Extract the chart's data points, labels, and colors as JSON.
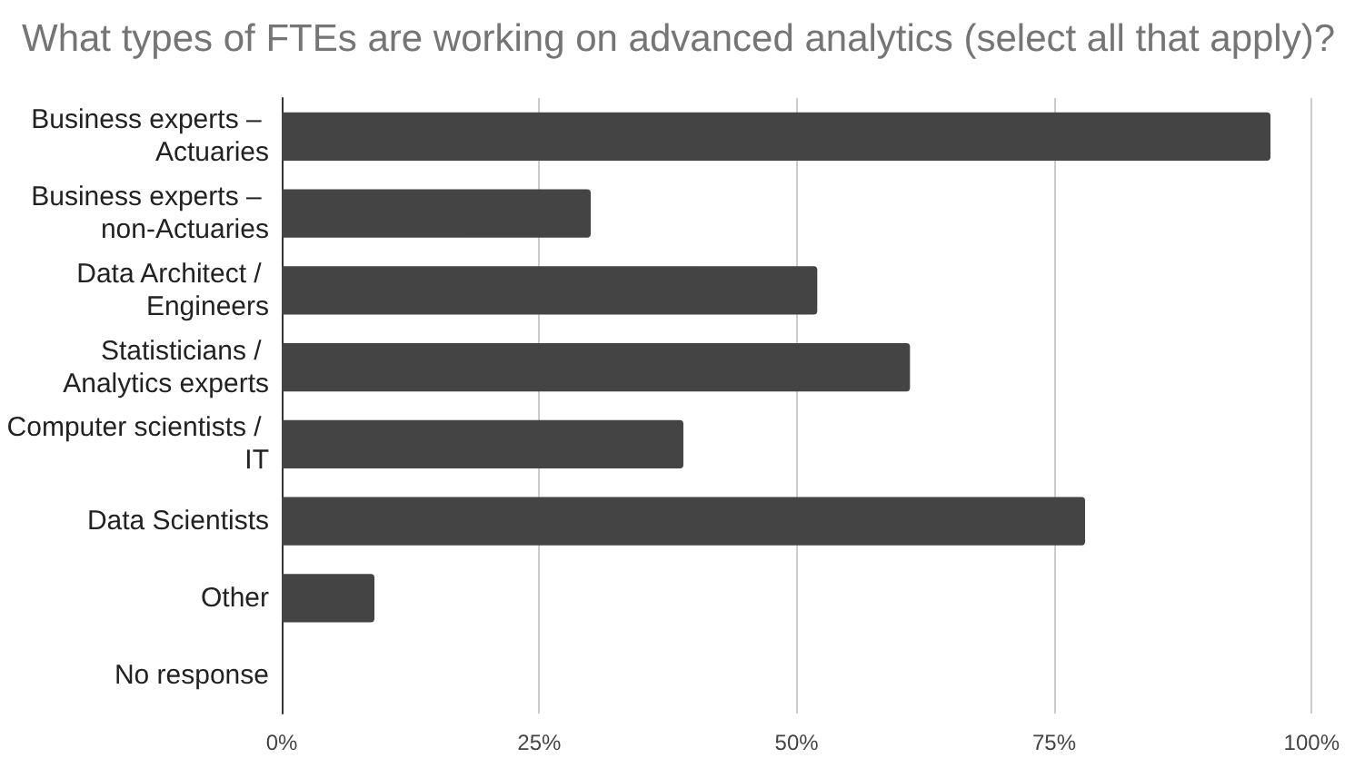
{
  "chart_data": {
    "type": "bar",
    "orientation": "horizontal",
    "title": "What types of FTEs are working on advanced analytics (select all that apply)?",
    "categories": [
      "Business experts – Actuaries",
      "Business experts – non-Actuaries",
      "Data Architect / Engineers",
      "Statisticians / Analytics experts",
      "Computer scientists / IT",
      "Data Scientists",
      "Other",
      "No response"
    ],
    "values": [
      96,
      30,
      52,
      61,
      39,
      78,
      9,
      0
    ],
    "color": "#444444",
    "xlim": [
      0,
      100
    ],
    "xticks": [
      {
        "value": 0,
        "label": "0%"
      },
      {
        "value": 25,
        "label": "25%"
      },
      {
        "value": 50,
        "label": "50%"
      },
      {
        "value": 75,
        "label": "75%"
      },
      {
        "value": 100,
        "label": "100%"
      }
    ],
    "grid": "x"
  }
}
